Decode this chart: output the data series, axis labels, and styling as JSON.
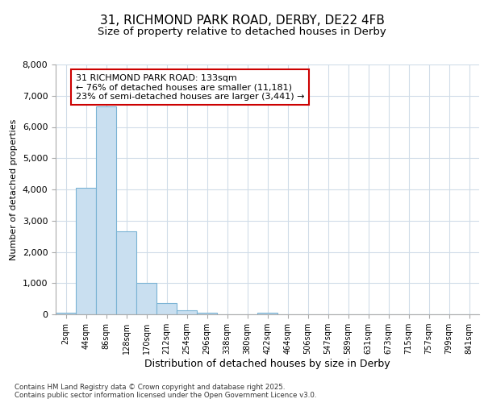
{
  "title_line1": "31, RICHMOND PARK ROAD, DERBY, DE22 4FB",
  "title_line2": "Size of property relative to detached houses in Derby",
  "xlabel": "Distribution of detached houses by size in Derby",
  "ylabel": "Number of detached properties",
  "bar_labels": [
    "2sqm",
    "44sqm",
    "86sqm",
    "128sqm",
    "170sqm",
    "212sqm",
    "254sqm",
    "296sqm",
    "338sqm",
    "380sqm",
    "422sqm",
    "464sqm",
    "506sqm",
    "547sqm",
    "589sqm",
    "631sqm",
    "673sqm",
    "715sqm",
    "757sqm",
    "799sqm",
    "841sqm"
  ],
  "bar_values": [
    50,
    4050,
    6650,
    2650,
    1000,
    350,
    125,
    50,
    5,
    5,
    50,
    0,
    0,
    0,
    0,
    0,
    0,
    0,
    0,
    0,
    0
  ],
  "bar_color": "#c9dff0",
  "bar_edge_color": "#7ab3d4",
  "annotation_text": "31 RICHMOND PARK ROAD: 133sqm\n← 76% of detached houses are smaller (11,181)\n23% of semi-detached houses are larger (3,441) →",
  "annotation_border_color": "#cc0000",
  "ylim_max": 8000,
  "yticks": [
    0,
    1000,
    2000,
    3000,
    4000,
    5000,
    6000,
    7000,
    8000
  ],
  "background_color": "#ffffff",
  "grid_color": "#d0dce8",
  "footer_text": "Contains HM Land Registry data © Crown copyright and database right 2025.\nContains public sector information licensed under the Open Government Licence v3.0."
}
